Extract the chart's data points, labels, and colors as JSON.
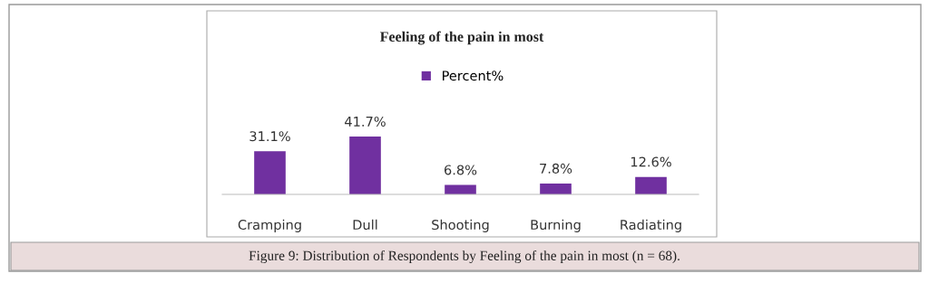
{
  "chart_data": {
    "type": "bar",
    "title": "Feeling of the pain in most",
    "categories": [
      "Cramping",
      "Dull",
      "Shooting",
      "Burning",
      "Radiating"
    ],
    "series": [
      {
        "name": "Percent%",
        "color": "#7030a0",
        "values": [
          31.1,
          41.7,
          6.8,
          7.8,
          12.6
        ],
        "value_labels": [
          "31.1%",
          "41.7%",
          "6.8%",
          "7.8%",
          "12.6%"
        ]
      }
    ],
    "legend": "top",
    "grid": false,
    "annotations": [
      "Figure 9: Distribution of Respondents by Feeling of the pain in most (n = 68)."
    ]
  }
}
